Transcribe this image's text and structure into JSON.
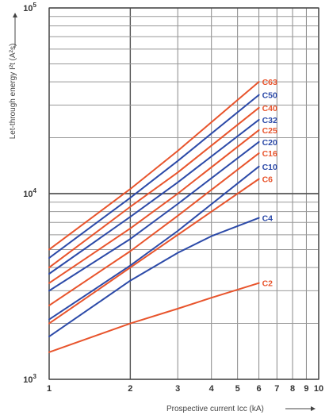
{
  "chart_data": {
    "type": "line",
    "xlabel": "Prospective current Icc (kA)",
    "ylabel": "Let-through energy I²t (A²s)",
    "x_scale": "log",
    "y_scale": "log",
    "xlim": [
      1,
      10
    ],
    "ylim": [
      1000,
      100000
    ],
    "x_ticks": [
      "1",
      "2",
      "3",
      "4",
      "5",
      "6",
      "7",
      "8",
      "9",
      "10"
    ],
    "y_ticks": [
      {
        "base": "10",
        "exp": "3",
        "value": 1000
      },
      {
        "base": "10",
        "exp": "4",
        "value": 10000
      },
      {
        "base": "10",
        "exp": "5",
        "value": 100000
      }
    ],
    "grid": true,
    "series": [
      {
        "name": "C63",
        "color": "#e8542c",
        "x": [
          1,
          2,
          3,
          6
        ],
        "y": [
          5000,
          10600,
          17000,
          40000
        ]
      },
      {
        "name": "C50",
        "color": "#2c4aa8",
        "x": [
          1,
          2,
          3,
          6
        ],
        "y": [
          4500,
          9500,
          15000,
          34000
        ]
      },
      {
        "name": "C40",
        "color": "#e8542c",
        "x": [
          1,
          2,
          3,
          6
        ],
        "y": [
          4000,
          8500,
          13000,
          29000
        ]
      },
      {
        "name": "C32",
        "color": "#2c4aa8",
        "x": [
          1,
          2,
          3,
          6
        ],
        "y": [
          3700,
          7500,
          11500,
          25000
        ]
      },
      {
        "name": "C25",
        "color": "#e8542c",
        "x": [
          1,
          2,
          3,
          6
        ],
        "y": [
          3300,
          6500,
          10000,
          22000
        ]
      },
      {
        "name": "C20",
        "color": "#2c4aa8",
        "x": [
          1,
          2,
          3,
          6
        ],
        "y": [
          3000,
          5700,
          8800,
          19000
        ]
      },
      {
        "name": "C16",
        "color": "#e8542c",
        "x": [
          1,
          2,
          3,
          6
        ],
        "y": [
          2500,
          4900,
          7600,
          16500
        ]
      },
      {
        "name": "C10",
        "color": "#2c4aa8",
        "x": [
          1,
          2,
          3,
          6
        ],
        "y": [
          2100,
          4100,
          6300,
          14000
        ]
      },
      {
        "name": "C6",
        "color": "#e8542c",
        "x": [
          1,
          2,
          3,
          6
        ],
        "y": [
          2000,
          4000,
          6000,
          12000
        ]
      },
      {
        "name": "C4",
        "color": "#2c4aa8",
        "x": [
          1,
          2,
          3,
          4,
          6
        ],
        "y": [
          1700,
          3400,
          4800,
          5900,
          7400
        ]
      },
      {
        "name": "C2",
        "color": "#e8542c",
        "x": [
          1,
          2,
          3,
          4,
          6
        ],
        "y": [
          1400,
          2000,
          2400,
          2750,
          3300
        ]
      }
    ]
  }
}
